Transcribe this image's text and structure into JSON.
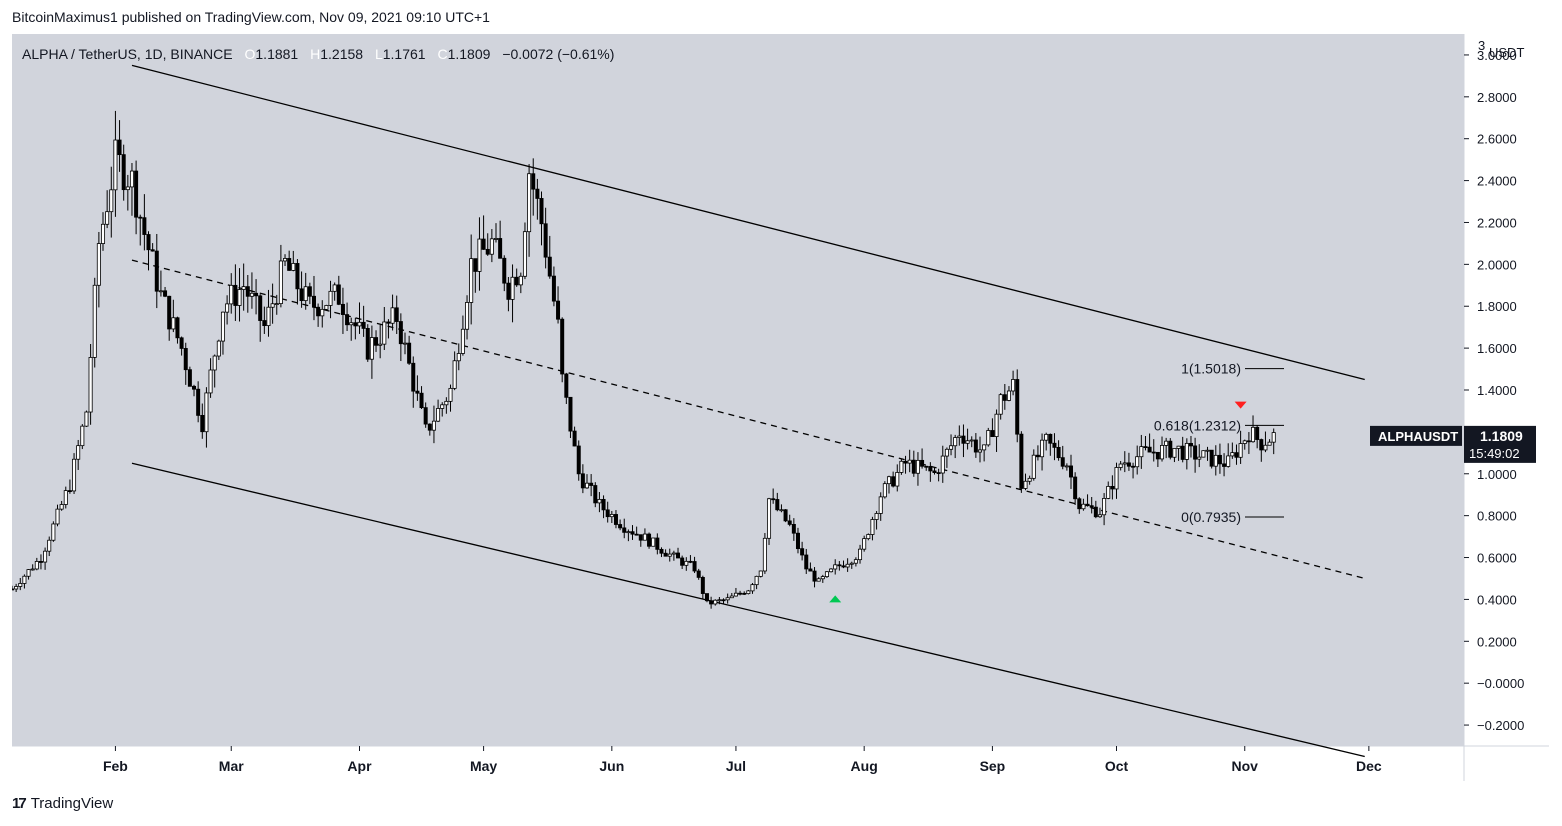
{
  "header": {
    "published_by": "BitcoinMaximus1 published on TradingView.com, Nov 09, 2021 09:10 UTC+1"
  },
  "legend": {
    "symbol": "ALPHA / TetherUS, 1D, BINANCE",
    "open_label": "O",
    "open": "1.1881",
    "high_label": "H",
    "high": "1.2158",
    "low_label": "L",
    "low": "1.1761",
    "close_label": "C",
    "close": "1.1809",
    "change": "−0.0072 (−0.61%)"
  },
  "price_scale": {
    "top_label": "3",
    "unit": "USDT",
    "ticks": [
      "3.0000",
      "2.8000",
      "2.6000",
      "2.4000",
      "2.2000",
      "2.0000",
      "1.8000",
      "1.6000",
      "1.4000",
      "1.2000",
      "1.0000",
      "0.8000",
      "0.6000",
      "0.4000",
      "0.2000",
      "−0.0000",
      "−0.2000"
    ]
  },
  "price_tag": {
    "symbol": "ALPHAUSDT",
    "price": "1.1809",
    "countdown": "15:49:02"
  },
  "footer": {
    "brand": "TradingView",
    "logo_text": "17"
  },
  "colors": {
    "background": "#d1d4dc",
    "axis_bg": "#ffffff",
    "candle": "#000000",
    "channel": "#000000",
    "marker_up": "#00c853",
    "marker_down": "#ff1f1f",
    "tag_bg": "#131722"
  },
  "chart_data": {
    "type": "candlestick",
    "title": "ALPHA / TetherUS, 1D, BINANCE",
    "ylabel": "USDT",
    "ylim": [
      -0.3,
      3.1
    ],
    "x_ticks": [
      "Feb",
      "Mar",
      "Apr",
      "May",
      "Jun",
      "Jul",
      "Aug",
      "Sep",
      "Oct",
      "Nov",
      "Dec"
    ],
    "x_tick_dates": [
      "2021-02-01",
      "2021-03-01",
      "2021-04-01",
      "2021-05-01",
      "2021-06-01",
      "2021-07-01",
      "2021-08-01",
      "2021-09-01",
      "2021-10-01",
      "2021-11-01",
      "2021-12-01"
    ],
    "x_range": [
      "2021-01-07",
      "2021-12-24"
    ],
    "close_series": {
      "dates": [
        "2021-01-07",
        "2021-01-14",
        "2021-01-21",
        "2021-01-25",
        "2021-01-28",
        "2021-02-01",
        "2021-02-05",
        "2021-02-08",
        "2021-02-12",
        "2021-02-17",
        "2021-02-22",
        "2021-02-27",
        "2021-03-04",
        "2021-03-09",
        "2021-03-14",
        "2021-03-20",
        "2021-03-27",
        "2021-04-03",
        "2021-04-10",
        "2021-04-17",
        "2021-04-23",
        "2021-04-28",
        "2021-05-03",
        "2021-05-07",
        "2021-05-10",
        "2021-05-12",
        "2021-05-15",
        "2021-05-19",
        "2021-05-20",
        "2021-05-24",
        "2021-05-29",
        "2021-06-04",
        "2021-06-10",
        "2021-06-16",
        "2021-06-21",
        "2021-06-24",
        "2021-06-29",
        "2021-07-04",
        "2021-07-07",
        "2021-07-09",
        "2021-07-14",
        "2021-07-18",
        "2021-07-21",
        "2021-07-25",
        "2021-07-31",
        "2021-08-05",
        "2021-08-11",
        "2021-08-18",
        "2021-08-24",
        "2021-08-30",
        "2021-09-03",
        "2021-09-06",
        "2021-09-08",
        "2021-09-14",
        "2021-09-19",
        "2021-09-22",
        "2021-09-27",
        "2021-10-02",
        "2021-10-08",
        "2021-10-15",
        "2021-10-22",
        "2021-10-28",
        "2021-11-02",
        "2021-11-05",
        "2021-11-08"
      ],
      "values": [
        0.45,
        0.6,
        0.95,
        1.3,
        2.1,
        2.5,
        2.4,
        2.15,
        1.85,
        1.6,
        1.25,
        1.8,
        1.9,
        1.7,
        2.0,
        1.8,
        1.85,
        1.6,
        1.75,
        1.2,
        1.4,
        2.0,
        2.1,
        1.9,
        2.0,
        2.45,
        2.2,
        1.7,
        1.45,
        1.0,
        0.85,
        0.75,
        0.68,
        0.6,
        0.55,
        0.38,
        0.4,
        0.45,
        0.55,
        0.88,
        0.75,
        0.55,
        0.48,
        0.55,
        0.62,
        0.9,
        1.05,
        1.0,
        1.2,
        1.1,
        1.35,
        1.42,
        0.95,
        1.15,
        1.05,
        0.85,
        0.82,
        1.05,
        1.1,
        1.12,
        1.08,
        1.05,
        1.2,
        1.15,
        1.18
      ]
    },
    "trendlines": [
      {
        "name": "channel-upper",
        "style": "solid",
        "points": [
          [
            "2021-02-05",
            2.95
          ],
          [
            "2021-11-30",
            1.45
          ]
        ]
      },
      {
        "name": "channel-mid",
        "style": "dashed",
        "points": [
          [
            "2021-02-05",
            2.02
          ],
          [
            "2021-11-30",
            0.5
          ]
        ]
      },
      {
        "name": "channel-lower",
        "style": "solid",
        "points": [
          [
            "2021-02-05",
            1.05
          ],
          [
            "2021-11-30",
            -0.35
          ]
        ]
      }
    ],
    "fib_levels": [
      {
        "label": "1(1.5018)",
        "value": 1.5018
      },
      {
        "label": "0.618(1.2312)",
        "value": 1.2312
      },
      {
        "label": "0(0.7935)",
        "value": 0.7935
      }
    ],
    "markers": [
      {
        "type": "up",
        "date": "2021-07-25",
        "value": 0.4
      },
      {
        "type": "down",
        "date": "2021-10-31",
        "value": 1.33
      }
    ],
    "last_price": 1.1809
  }
}
